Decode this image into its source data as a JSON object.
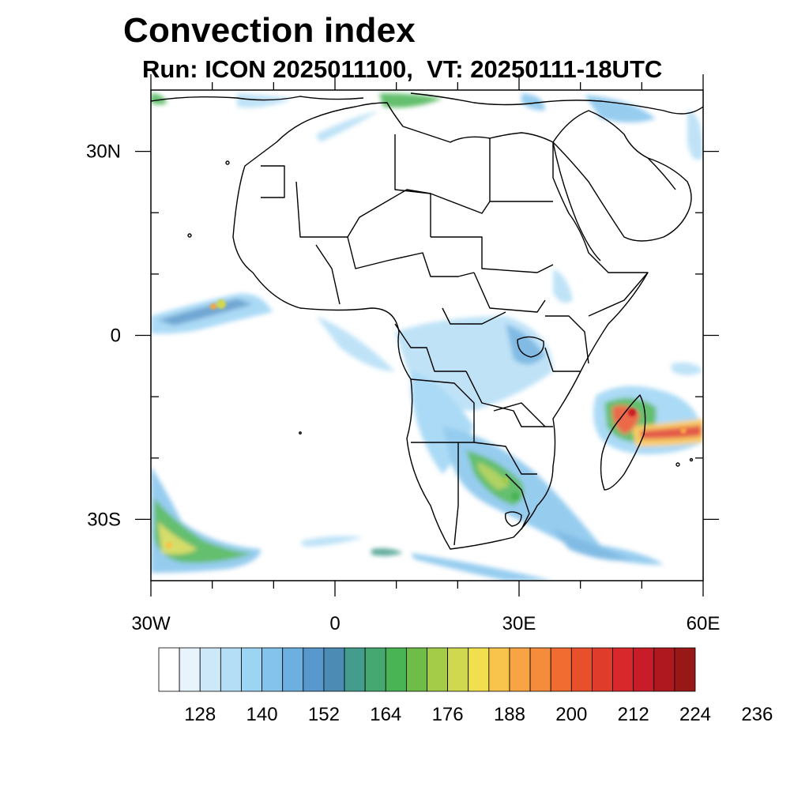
{
  "title": "Convection index",
  "subtitle": "Run: ICON 2025011100,  VT: 20250111-18UTC",
  "map": {
    "lon_range": [
      -30,
      60
    ],
    "lat_range": [
      -40,
      40
    ],
    "lat_ticks": [
      {
        "value": 30,
        "label": "30N"
      },
      {
        "value": 0,
        "label": "0"
      },
      {
        "value": -30,
        "label": "30S"
      }
    ],
    "lon_ticks": [
      {
        "value": -30,
        "label": "30W"
      },
      {
        "value": 0,
        "label": "0"
      },
      {
        "value": 30,
        "label": "30E"
      },
      {
        "value": 60,
        "label": "60E"
      }
    ],
    "minor_lon_ticks": [
      -20,
      -10,
      10,
      20,
      40,
      50
    ],
    "minor_lat_ticks": [
      20,
      10,
      -10,
      -20
    ]
  },
  "colorbar": {
    "colors": [
      "#ffffff",
      "#e8f4fc",
      "#cde8f8",
      "#b4def6",
      "#9cd4f4",
      "#84c4ec",
      "#6cb0e0",
      "#5898cc",
      "#4c8cb4",
      "#449c8c",
      "#44a870",
      "#48b454",
      "#70bc48",
      "#a4cc48",
      "#d0d850",
      "#f0e050",
      "#f8c44c",
      "#f8a444",
      "#f48c3c",
      "#f06c30",
      "#e8502c",
      "#e03c2c",
      "#d8282c",
      "#c81c28",
      "#b01820",
      "#981818"
    ],
    "labels": [
      {
        "value": 128,
        "label": "128"
      },
      {
        "value": 140,
        "label": "140"
      },
      {
        "value": 152,
        "label": "152"
      },
      {
        "value": 164,
        "label": "164"
      },
      {
        "value": 176,
        "label": "176"
      },
      {
        "value": 188,
        "label": "188"
      },
      {
        "value": 200,
        "label": "200"
      },
      {
        "value": 212,
        "label": "212"
      },
      {
        "value": 224,
        "label": "224"
      },
      {
        "value": 236,
        "label": "236"
      }
    ],
    "first_label_index": 2,
    "label_step": 3
  }
}
